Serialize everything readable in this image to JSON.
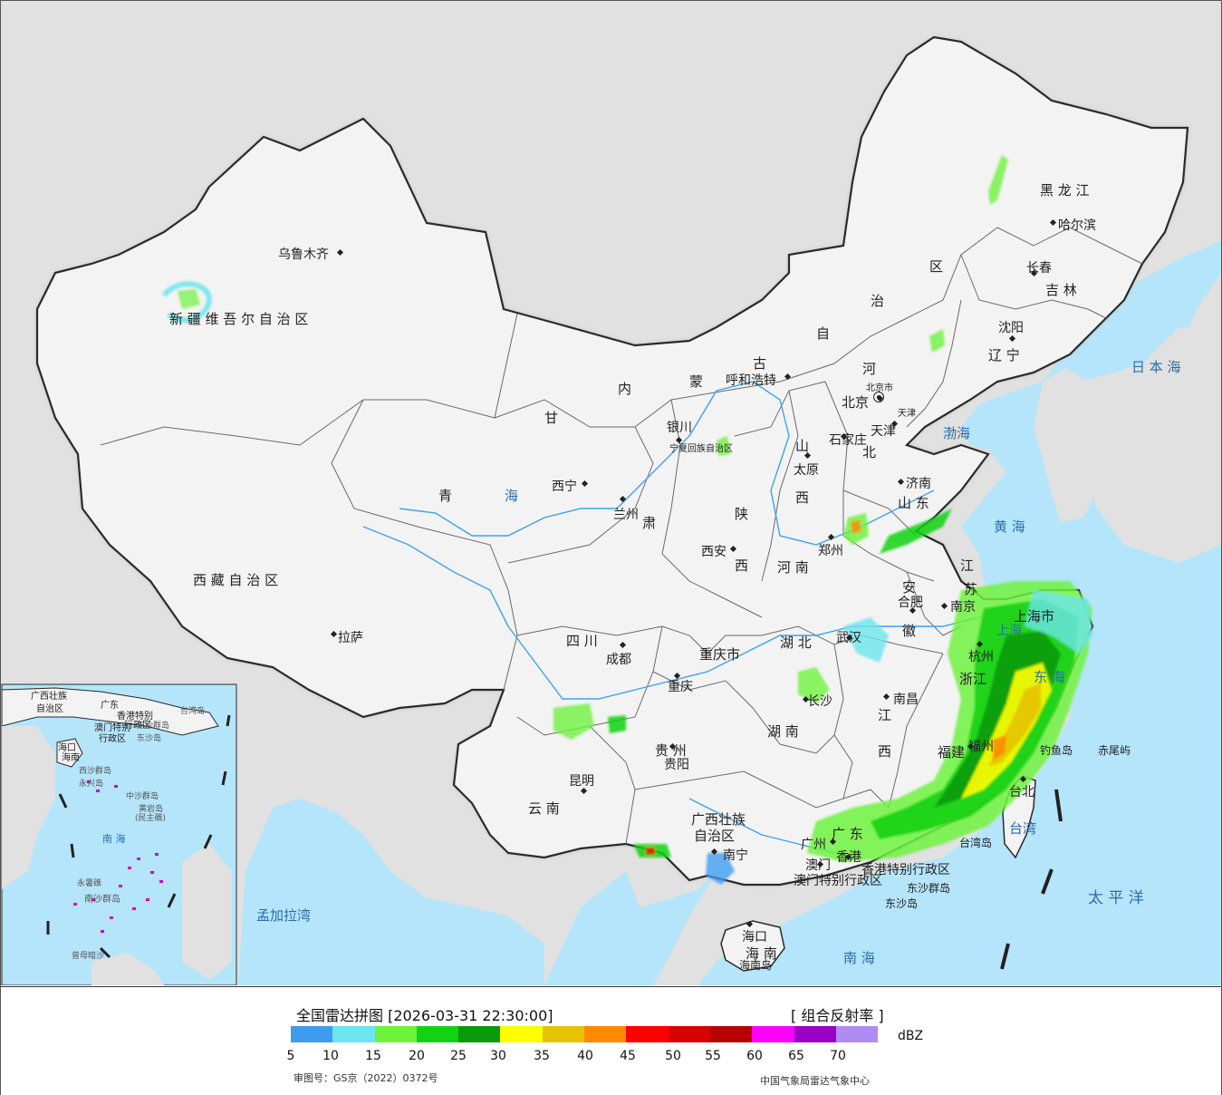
{
  "colors": {
    "ocean": "#b4e5fb",
    "foreign_land": "#e1e1e1",
    "china_land": "#f3f3f3",
    "border": "#2a2a2a",
    "river": "#3fa2ea"
  },
  "legend": {
    "title": "全国雷达拼图 [2026-03-31 22:30:00]",
    "product": "[ 组合反射率 ]",
    "unit": "dBZ",
    "approval": "审图号：GS京（2022）0372号",
    "agency": "中国气象局雷达气象中心",
    "ticks": [
      "5",
      "10",
      "15",
      "20",
      "25",
      "30",
      "35",
      "40",
      "45",
      "50",
      "55",
      "60",
      "65",
      "70"
    ],
    "scale_colors": [
      "#3d9cf0",
      "#6ce6ec",
      "#6ef23e",
      "#13d213",
      "#0b9a0b",
      "#ffff00",
      "#e6c300",
      "#ff8a00",
      "#ff0000",
      "#d80000",
      "#b80000",
      "#ff00ff",
      "#9a00c6",
      "#b08cf0"
    ]
  },
  "map_labels": [
    {
      "name": "label-xinjiang",
      "text": "新 疆 维 吾 尔 自 治 区",
      "size": 15
    },
    {
      "name": "label-urumqi",
      "text": "乌鲁木齐",
      "size": 14
    },
    {
      "name": "label-xizang",
      "text": "西 藏 自 治 区",
      "size": 15
    },
    {
      "name": "label-lhasa",
      "text": "拉萨",
      "size": 14
    },
    {
      "name": "label-qinghai-1",
      "text": "青",
      "size": 15
    },
    {
      "name": "label-qinghai-2",
      "text": "海",
      "size": 15
    },
    {
      "name": "label-xining",
      "text": "西宁",
      "size": 14
    },
    {
      "name": "label-gansu",
      "text": "甘",
      "size": 15
    },
    {
      "name": "label-lanzhou",
      "text": "兰州",
      "size": 14
    },
    {
      "name": "label-gansu-su",
      "text": "肃",
      "size": 15
    },
    {
      "name": "label-yinchuan",
      "text": "银川",
      "size": 14
    },
    {
      "name": "label-ningxia",
      "text": "宁夏回族自治区",
      "size": 10
    },
    {
      "name": "label-neimenggu-nei",
      "text": "内",
      "size": 15
    },
    {
      "name": "label-neimenggu-meng",
      "text": "蒙",
      "size": 15
    },
    {
      "name": "label-neimenggu-gu",
      "text": "古",
      "size": 15
    },
    {
      "name": "label-neimenggu-zi",
      "text": "自",
      "size": 15
    },
    {
      "name": "label-neimenggu-zhi",
      "text": "治",
      "size": 15
    },
    {
      "name": "label-neimenggu-qu",
      "text": "区",
      "size": 15
    },
    {
      "name": "label-hohhot",
      "text": "呼和浩特",
      "size": 14
    },
    {
      "name": "label-heilongjiang",
      "text": "黑 龙 江",
      "size": 15
    },
    {
      "name": "label-harbin",
      "text": "哈尔滨",
      "size": 14
    },
    {
      "name": "label-changchun",
      "text": "长春",
      "size": 14
    },
    {
      "name": "label-jilin",
      "text": "吉 林",
      "size": 15
    },
    {
      "name": "label-shenyang",
      "text": "沈阳",
      "size": 14
    },
    {
      "name": "label-liaoning",
      "text": "辽 宁",
      "size": 15
    },
    {
      "name": "label-beijing",
      "text": "北京",
      "size": 15
    },
    {
      "name": "label-beijing-shi",
      "text": "北京市",
      "size": 10
    },
    {
      "name": "label-tianjin",
      "text": "天津",
      "size": 14
    },
    {
      "name": "label-tianjin-shi",
      "text": "天津",
      "size": 10
    },
    {
      "name": "label-hebei-he",
      "text": "河",
      "size": 15
    },
    {
      "name": "label-hebei-bei",
      "text": "北",
      "size": 15
    },
    {
      "name": "label-shijiazhuang",
      "text": "石家庄",
      "size": 14
    },
    {
      "name": "label-shanxi-shan",
      "text": "山",
      "size": 15
    },
    {
      "name": "label-taiyuan",
      "text": "太原",
      "size": 14
    },
    {
      "name": "label-shanxi-xi",
      "text": "西",
      "size": 15
    },
    {
      "name": "label-bohai",
      "text": "渤海",
      "size": 15
    },
    {
      "name": "label-jinan",
      "text": "济南",
      "size": 14
    },
    {
      "name": "label-shandong",
      "text": "山 东",
      "size": 15
    },
    {
      "name": "label-huanghai",
      "text": "黄 海",
      "size": 15
    },
    {
      "name": "label-riben",
      "text": "日 本 海",
      "size": 15
    },
    {
      "name": "label-shaanxi",
      "text": "陕",
      "size": 15
    },
    {
      "name": "label-xian",
      "text": "西安",
      "size": 14
    },
    {
      "name": "label-shaanxi-xi",
      "text": "西",
      "size": 15
    },
    {
      "name": "label-zhengzhou",
      "text": "郑州",
      "size": 14
    },
    {
      "name": "label-henan",
      "text": "河 南",
      "size": 15
    },
    {
      "name": "label-jiangsu-jiang",
      "text": "江",
      "size": 15
    },
    {
      "name": "label-jiangsu-su",
      "text": "苏",
      "size": 15
    },
    {
      "name": "label-anhui-an",
      "text": "安",
      "size": 15
    },
    {
      "name": "label-hefei",
      "text": "合肥",
      "size": 14
    },
    {
      "name": "label-anhui-hui",
      "text": "徽",
      "size": 15
    },
    {
      "name": "label-nanjing",
      "text": "南京",
      "size": 14
    },
    {
      "name": "label-shanghai",
      "text": "上海市",
      "size": 15
    },
    {
      "name": "label-shanghai-city",
      "text": "上海",
      "size": 14
    },
    {
      "name": "label-hangzhou",
      "text": "杭州",
      "size": 14
    },
    {
      "name": "label-zhejiang",
      "text": "浙江",
      "size": 15
    },
    {
      "name": "label-donghai",
      "text": "东 海",
      "size": 15
    },
    {
      "name": "label-sichuan",
      "text": "四 川",
      "size": 15
    },
    {
      "name": "label-chengdu",
      "text": "成都",
      "size": 14
    },
    {
      "name": "label-chongqing",
      "text": "重庆市",
      "size": 15
    },
    {
      "name": "label-chongqing-city",
      "text": "重庆",
      "size": 14
    },
    {
      "name": "label-hubei",
      "text": "湖 北",
      "size": 15
    },
    {
      "name": "label-wuhan",
      "text": "武汉",
      "size": 14
    },
    {
      "name": "label-changsha",
      "text": "长沙",
      "size": 14
    },
    {
      "name": "label-hunan",
      "text": "湖 南",
      "size": 15
    },
    {
      "name": "label-nanchang",
      "text": "南昌",
      "size": 14
    },
    {
      "name": "label-jiangxi-jiang",
      "text": "江",
      "size": 15
    },
    {
      "name": "label-jiangxi-xi",
      "text": "西",
      "size": 15
    },
    {
      "name": "label-fujian",
      "text": "福建",
      "size": 15
    },
    {
      "name": "label-fuzhou",
      "text": "福州",
      "size": 14
    },
    {
      "name": "label-diaoyu",
      "text": "钓鱼岛",
      "size": 12
    },
    {
      "name": "label-chiwei",
      "text": "赤尾屿",
      "size": 12
    },
    {
      "name": "label-taibei",
      "text": "台北",
      "size": 14
    },
    {
      "name": "label-taiwan",
      "text": "台湾",
      "size": 15
    },
    {
      "name": "label-taiwan-dao",
      "text": "台湾岛",
      "size": 12
    },
    {
      "name": "label-guizhou",
      "text": "贵 州",
      "size": 15
    },
    {
      "name": "label-guiyang",
      "text": "贵阳",
      "size": 14
    },
    {
      "name": "label-kunming",
      "text": "昆明",
      "size": 14
    },
    {
      "name": "label-yunnan",
      "text": "云 南",
      "size": 15
    },
    {
      "name": "label-guangxi-1",
      "text": "广西壮族",
      "size": 15
    },
    {
      "name": "label-guangxi-2",
      "text": "自治区",
      "size": 15
    },
    {
      "name": "label-nanning",
      "text": "南宁",
      "size": 14
    },
    {
      "name": "label-guangzhou",
      "text": "广州",
      "size": 14
    },
    {
      "name": "label-guangdong",
      "text": "广 东",
      "size": 15
    },
    {
      "name": "label-xianggang",
      "text": "香港",
      "size": 14
    },
    {
      "name": "label-aomen",
      "text": "澳门",
      "size": 14
    },
    {
      "name": "label-hk-sar",
      "text": "香港特别行政区",
      "size": 14
    },
    {
      "name": "label-macau-sar",
      "text": "澳门特别行政区",
      "size": 14
    },
    {
      "name": "label-dongsha-qundao",
      "text": "东沙群岛",
      "size": 12
    },
    {
      "name": "label-dongsha-dao",
      "text": "东沙岛",
      "size": 12
    },
    {
      "name": "label-taipingyang",
      "text": "太 平 洋",
      "size": 17
    },
    {
      "name": "label-mengjiala",
      "text": "孟加拉湾",
      "size": 15
    },
    {
      "name": "label-haikou",
      "text": "海口",
      "size": 14
    },
    {
      "name": "label-hainan",
      "text": "海 南",
      "size": 15
    },
    {
      "name": "label-hainan-dao",
      "text": "海南岛",
      "size": 12
    },
    {
      "name": "label-nanhai",
      "text": "南 海",
      "size": 15
    },
    {
      "name": "label-inset-guangxi",
      "text": "广西壮族",
      "size": 10
    },
    {
      "name": "label-inset-zizhiqu",
      "text": "自治区",
      "size": 10
    },
    {
      "name": "label-inset-guangdong",
      "text": "广东",
      "size": 10
    },
    {
      "name": "label-inset-hk",
      "text": "香港特别",
      "size": 10
    },
    {
      "name": "label-inset-hk2",
      "text": "行政区",
      "size": 10
    },
    {
      "name": "label-inset-macau",
      "text": "澳门特别",
      "size": 10
    },
    {
      "name": "label-inset-macau2",
      "text": "行政区",
      "size": 10
    },
    {
      "name": "label-inset-dongsha",
      "text": "东沙群岛",
      "size": 9
    },
    {
      "name": "label-inset-dongshadao",
      "text": "东沙岛",
      "size": 9
    },
    {
      "name": "label-inset-taiwan",
      "text": "台湾岛",
      "size": 9
    },
    {
      "name": "label-inset-haikou",
      "text": "海口",
      "size": 10
    },
    {
      "name": "label-inset-hainan",
      "text": "海南",
      "size": 10
    },
    {
      "name": "label-inset-xisha",
      "text": "西沙群岛",
      "size": 9
    },
    {
      "name": "label-inset-yongxing",
      "text": "永兴岛",
      "size": 9
    },
    {
      "name": "label-inset-zhongsha",
      "text": "中沙群岛",
      "size": 9
    },
    {
      "name": "label-inset-huangyan",
      "text": "黄岩岛",
      "size": 9
    },
    {
      "name": "label-inset-huangyan2",
      "text": "(民主礁)",
      "size": 9
    },
    {
      "name": "label-inset-nanhai",
      "text": "南 海",
      "size": 11
    },
    {
      "name": "label-inset-yongshu",
      "text": "永暑礁",
      "size": 9
    },
    {
      "name": "label-inset-nansha",
      "text": "南沙群岛",
      "size": 10
    },
    {
      "name": "label-inset-zengmu",
      "text": "曾母暗沙",
      "size": 9
    }
  ]
}
